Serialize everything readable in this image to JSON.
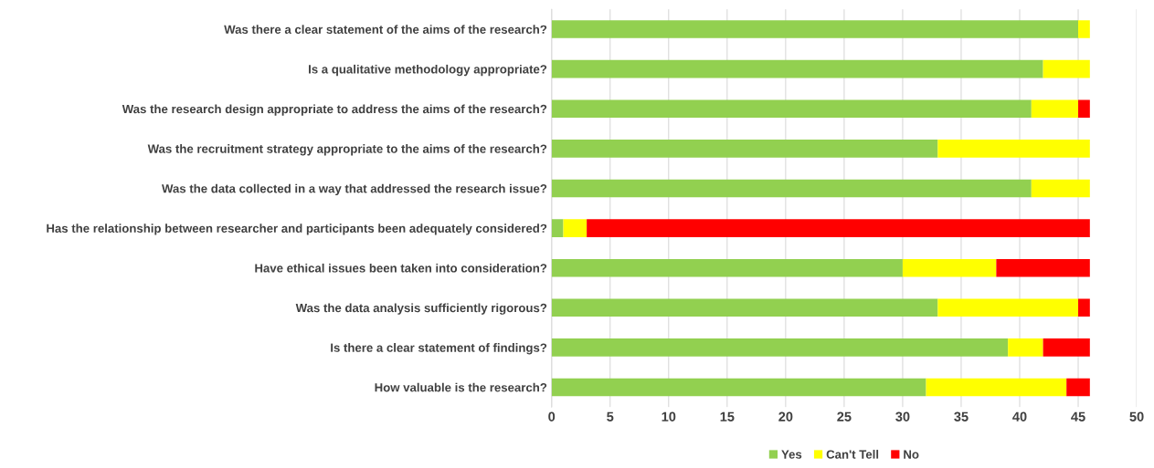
{
  "chart_data": {
    "type": "bar",
    "orientation": "horizontal",
    "stacked": true,
    "categories": [
      "Was there a clear statement of the aims of the research?",
      "Is a qualitative methodology appropriate?",
      "Was the research design appropriate to address the aims of the research?",
      "Was the recruitment strategy appropriate to the aims of the research?",
      "Was the data collected in a way that addressed the research issue?",
      "Has the relationship between researcher and participants been adequately considered?",
      "Have ethical issues been taken into consideration?",
      "Was the data analysis sufficiently rigorous?",
      "Is there a clear statement of findings?",
      "How valuable is the research?"
    ],
    "series": [
      {
        "name": "Yes",
        "color": "#92d050",
        "values": [
          45,
          42,
          41,
          33,
          41,
          1,
          30,
          33,
          39,
          32
        ]
      },
      {
        "name": "Can't Tell",
        "color": "#ffff00",
        "values": [
          1,
          4,
          4,
          13,
          5,
          2,
          8,
          12,
          3,
          12
        ]
      },
      {
        "name": "No",
        "color": "#ff0000",
        "values": [
          null,
          null,
          1,
          null,
          null,
          43,
          8,
          1,
          4,
          2
        ]
      }
    ],
    "xlim": [
      0,
      50
    ],
    "xticks": [
      0,
      5,
      10,
      15,
      20,
      25,
      30,
      35,
      40,
      45,
      50
    ],
    "grid": "x",
    "legend": "bottom"
  }
}
